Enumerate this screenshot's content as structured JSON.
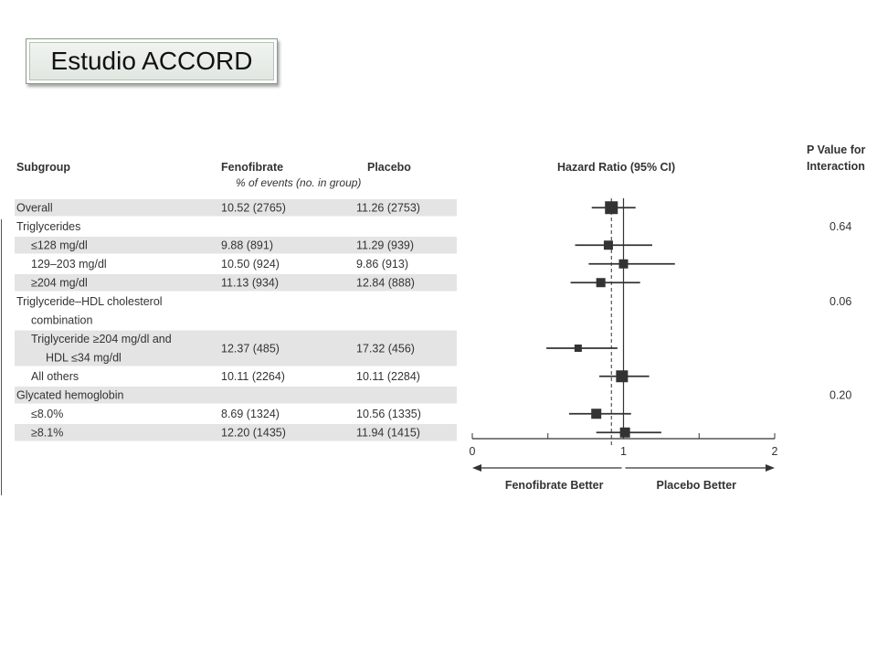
{
  "slide": {
    "title": "Estudio ACCORD"
  },
  "table": {
    "headers": {
      "subgroup": "Subgroup",
      "fenofibrate": "Fenofibrate",
      "placebo": "Placebo",
      "events_note": "% of events (no. in group)",
      "hazard_ratio": "Hazard Ratio (95% CI)",
      "p_value_line1": "P Value for",
      "p_value_line2": "Interaction"
    },
    "rows": [
      {
        "label": [
          "Overall"
        ],
        "indent": 0,
        "shaded": true,
        "fenofibrate": "10.52 (2765)",
        "placebo": "11.26 (2753)",
        "p": ""
      },
      {
        "label": [
          "Triglycerides"
        ],
        "indent": 0,
        "shaded": false,
        "fenofibrate": "",
        "placebo": "",
        "p": "0.64"
      },
      {
        "label": [
          "≤128 mg/dl"
        ],
        "indent": 1,
        "shaded": true,
        "fenofibrate": "9.88 (891)",
        "placebo": "11.29 (939)",
        "p": ""
      },
      {
        "label": [
          "129–203 mg/dl"
        ],
        "indent": 1,
        "shaded": false,
        "fenofibrate": "10.50 (924)",
        "placebo": "9.86 (913)",
        "p": ""
      },
      {
        "label": [
          "≥204 mg/dl"
        ],
        "indent": 1,
        "shaded": true,
        "fenofibrate": "11.13 (934)",
        "placebo": "12.84 (888)",
        "p": ""
      },
      {
        "label": [
          "Triglyceride–HDL cholesterol",
          "combination"
        ],
        "indent": 0,
        "shaded": false,
        "fenofibrate": "",
        "placebo": "",
        "p": "0.06"
      },
      {
        "label": [
          "Triglyceride ≥204 mg/dl and",
          "HDL ≤34 mg/dl"
        ],
        "indent": 1,
        "shaded": true,
        "fenofibrate": "12.37 (485)",
        "placebo": "17.32 (456)",
        "p": ""
      },
      {
        "label": [
          "All others"
        ],
        "indent": 1,
        "shaded": false,
        "fenofibrate": "10.11 (2264)",
        "placebo": "10.11 (2284)",
        "p": ""
      },
      {
        "label": [
          "Glycated hemoglobin"
        ],
        "indent": 0,
        "shaded": true,
        "fenofibrate": "",
        "placebo": "",
        "p": "0.20"
      },
      {
        "label": [
          "≤8.0%"
        ],
        "indent": 1,
        "shaded": false,
        "fenofibrate": "8.69 (1324)",
        "placebo": "10.56 (1335)",
        "p": ""
      },
      {
        "label": [
          "≥8.1%"
        ],
        "indent": 1,
        "shaded": true,
        "fenofibrate": "12.20 (1435)",
        "placebo": "11.94 (1415)",
        "p": ""
      }
    ]
  },
  "chart_data": {
    "type": "forest",
    "xlim": [
      0,
      2
    ],
    "xticks": [
      "0",
      "1",
      "2"
    ],
    "reference_line": 1,
    "overall_dashed_line": 0.92,
    "direction_labels": {
      "left": "Fenofibrate Better",
      "right": "Placebo Better"
    },
    "points": [
      {
        "row": 0,
        "hr": 0.92,
        "lo": 0.79,
        "hi": 1.08
      },
      {
        "row": 2,
        "hr": 0.9,
        "lo": 0.68,
        "hi": 1.19
      },
      {
        "row": 3,
        "hr": 1.0,
        "lo": 0.77,
        "hi": 1.34
      },
      {
        "row": 4,
        "hr": 0.85,
        "lo": 0.65,
        "hi": 1.11
      },
      {
        "row": 6,
        "hr": 0.7,
        "lo": 0.49,
        "hi": 0.96
      },
      {
        "row": 7,
        "hr": 0.99,
        "lo": 0.84,
        "hi": 1.17
      },
      {
        "row": 9,
        "hr": 0.82,
        "lo": 0.64,
        "hi": 1.05
      },
      {
        "row": 10,
        "hr": 1.01,
        "lo": 0.82,
        "hi": 1.25
      }
    ]
  },
  "colors": {
    "ink": "#333333",
    "row_shade": "#e4e4e4",
    "title_bg": "#e6ebe6"
  }
}
